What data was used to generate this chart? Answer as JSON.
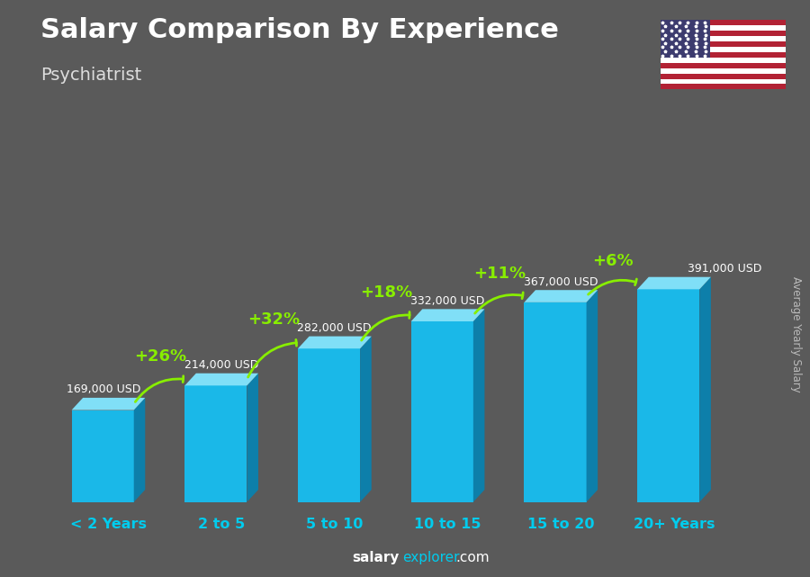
{
  "title": "Salary Comparison By Experience",
  "subtitle": "Psychiatrist",
  "categories": [
    "< 2 Years",
    "2 to 5",
    "5 to 10",
    "10 to 15",
    "15 to 20",
    "20+ Years"
  ],
  "values": [
    169000,
    214000,
    282000,
    332000,
    367000,
    391000
  ],
  "labels": [
    "169,000 USD",
    "214,000 USD",
    "282,000 USD",
    "332,000 USD",
    "367,000 USD",
    "391,000 USD"
  ],
  "pct_changes": [
    "+26%",
    "+32%",
    "+18%",
    "+11%",
    "+6%"
  ],
  "bar_color_main": "#1ab8e8",
  "bar_color_dark": "#0d7faa",
  "bar_color_light": "#80dff7",
  "background_color": "#5a5a5a",
  "title_color": "#ffffff",
  "subtitle_color": "#dddddd",
  "label_color": "#ffffff",
  "pct_color": "#88ee00",
  "xticklabel_color": "#00ccee",
  "footer_salary_color": "#ffffff",
  "footer_explorer_color": "#00ccee",
  "ylabel_text": "Average Yearly Salary",
  "ylabel_color": "#bbbbbb",
  "flag_stripe_red": "#B22234",
  "flag_stripe_white": "#FFFFFF",
  "flag_canton": "#3C3B6E"
}
